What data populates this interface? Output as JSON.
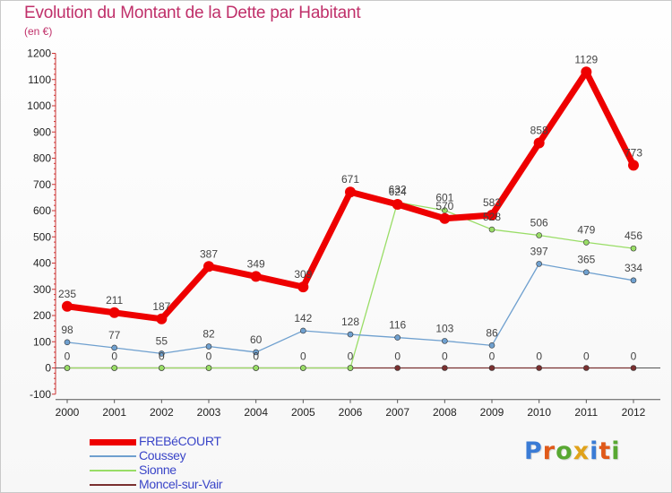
{
  "title": "Evolution du Montant de la Dette par Habitant",
  "subtitle": "(en €)",
  "logo": {
    "text": "Proxiti",
    "colors": [
      "#3a7bd5",
      "#e05a1a",
      "#58a832",
      "#e0a21a",
      "#3a7bd5",
      "#e05a1a",
      "#58a832"
    ]
  },
  "chart_data": {
    "type": "line",
    "title": "Evolution du Montant de la Dette par Habitant",
    "ylabel": "(en €)",
    "xlabel": "",
    "ylim": [
      -100,
      1200
    ],
    "yticks": [
      -100,
      0,
      100,
      200,
      300,
      400,
      500,
      600,
      700,
      800,
      900,
      1000,
      1100,
      1200
    ],
    "grid": false,
    "legend": "bottom-left",
    "categories": [
      "2000",
      "2001",
      "2002",
      "2003",
      "2004",
      "2005",
      "2006",
      "2007",
      "2008",
      "2009",
      "2010",
      "2011",
      "2012"
    ],
    "series": [
      {
        "name": "FREBéCOURT",
        "color": "#ee0000",
        "style": "thick",
        "labels": "all",
        "values": [
          235,
          211,
          187,
          387,
          349,
          309,
          671,
          624,
          570,
          583,
          858,
          1129,
          773
        ]
      },
      {
        "name": "Coussey",
        "color": "#6fa0cf",
        "style": "thin",
        "labels": "all",
        "values": [
          98,
          77,
          55,
          82,
          60,
          142,
          128,
          116,
          103,
          86,
          397,
          365,
          334
        ]
      },
      {
        "name": "Sionne",
        "color": "#99dd66",
        "style": "thin",
        "labels": "from2007",
        "values": [
          0,
          0,
          0,
          0,
          0,
          0,
          0,
          632,
          601,
          528,
          506,
          479,
          456
        ]
      },
      {
        "name": "Moncel-sur-Vair",
        "color": "#7a3030",
        "style": "thin",
        "labels": "all",
        "values": [
          0,
          0,
          0,
          0,
          0,
          0,
          0,
          0,
          0,
          0,
          0,
          0,
          0
        ]
      }
    ]
  }
}
